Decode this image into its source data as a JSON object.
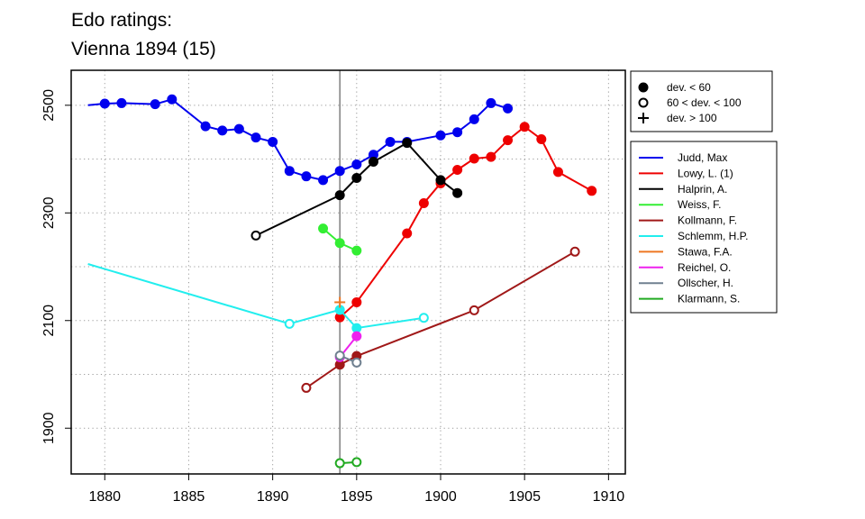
{
  "chart_data": {
    "type": "line",
    "title": "Edo ratings:",
    "subtitle": "Vienna 1894 (15)",
    "xlabel": "",
    "ylabel": "",
    "xlim": [
      1878,
      1911
    ],
    "ylim": [
      1815,
      2565
    ],
    "x_ticks": [
      1880,
      1885,
      1890,
      1895,
      1900,
      1905,
      1910
    ],
    "y_ticks": [
      1900,
      2100,
      2300,
      2500
    ],
    "grid": "dotted",
    "reference_x": 1894,
    "marker_legend": [
      {
        "marker": "filled",
        "label": "dev. < 60"
      },
      {
        "marker": "open",
        "label": "60 < dev. < 100"
      },
      {
        "marker": "plus",
        "label": "dev. > 100"
      }
    ],
    "series": [
      {
        "name": "Judd, Max",
        "color": "#0000ee",
        "points": [
          {
            "x": 1879,
            "y": 2500,
            "m": "none"
          },
          {
            "x": 1880,
            "y": 2503,
            "m": "filled"
          },
          {
            "x": 1881,
            "y": 2504,
            "m": "filled"
          },
          {
            "x": 1883,
            "y": 2502,
            "m": "filled"
          },
          {
            "x": 1884,
            "y": 2511,
            "m": "filled"
          },
          {
            "x": 1886,
            "y": 2461,
            "m": "filled"
          },
          {
            "x": 1887,
            "y": 2453,
            "m": "filled"
          },
          {
            "x": 1888,
            "y": 2456,
            "m": "filled"
          },
          {
            "x": 1889,
            "y": 2440,
            "m": "filled"
          },
          {
            "x": 1890,
            "y": 2432,
            "m": "filled"
          },
          {
            "x": 1891,
            "y": 2378,
            "m": "filled"
          },
          {
            "x": 1892,
            "y": 2368,
            "m": "filled"
          },
          {
            "x": 1893,
            "y": 2361,
            "m": "filled"
          },
          {
            "x": 1894,
            "y": 2378,
            "m": "filled"
          },
          {
            "x": 1895,
            "y": 2390,
            "m": "filled"
          },
          {
            "x": 1896,
            "y": 2408,
            "m": "filled"
          },
          {
            "x": 1897,
            "y": 2432,
            "m": "filled"
          },
          {
            "x": 1898,
            "y": 2432,
            "m": "filled"
          },
          {
            "x": 1900,
            "y": 2444,
            "m": "filled"
          },
          {
            "x": 1901,
            "y": 2450,
            "m": "filled"
          },
          {
            "x": 1902,
            "y": 2474,
            "m": "filled"
          },
          {
            "x": 1903,
            "y": 2504,
            "m": "filled"
          },
          {
            "x": 1904,
            "y": 2494,
            "m": "filled"
          }
        ]
      },
      {
        "name": "Lowy, L. (1)",
        "color": "#ee0000",
        "points": [
          {
            "x": 1894,
            "y": 2106,
            "m": "filled"
          },
          {
            "x": 1895,
            "y": 2134,
            "m": "filled"
          },
          {
            "x": 1898,
            "y": 2262,
            "m": "filled"
          },
          {
            "x": 1899,
            "y": 2318,
            "m": "filled"
          },
          {
            "x": 1900,
            "y": 2355,
            "m": "filled"
          },
          {
            "x": 1901,
            "y": 2380,
            "m": "filled"
          },
          {
            "x": 1902,
            "y": 2401,
            "m": "filled"
          },
          {
            "x": 1903,
            "y": 2404,
            "m": "filled"
          },
          {
            "x": 1904,
            "y": 2435,
            "m": "filled"
          },
          {
            "x": 1905,
            "y": 2460,
            "m": "filled"
          },
          {
            "x": 1906,
            "y": 2437,
            "m": "filled"
          },
          {
            "x": 1907,
            "y": 2376,
            "m": "filled"
          },
          {
            "x": 1909,
            "y": 2341,
            "m": "filled"
          }
        ]
      },
      {
        "name": "Halprin, A.",
        "color": "#000000",
        "points": [
          {
            "x": 1889,
            "y": 2258,
            "m": "open"
          },
          {
            "x": 1894,
            "y": 2333,
            "m": "filled"
          },
          {
            "x": 1895,
            "y": 2365,
            "m": "filled"
          },
          {
            "x": 1896,
            "y": 2395,
            "m": "filled"
          },
          {
            "x": 1898,
            "y": 2430,
            "m": "filled"
          },
          {
            "x": 1900,
            "y": 2361,
            "m": "filled"
          },
          {
            "x": 1901,
            "y": 2337,
            "m": "filled"
          }
        ]
      },
      {
        "name": "Weiss, F.",
        "color": "#33ee33",
        "points": [
          {
            "x": 1893,
            "y": 2271,
            "m": "filled"
          },
          {
            "x": 1894,
            "y": 2244,
            "m": "filled"
          },
          {
            "x": 1895,
            "y": 2230,
            "m": "filled"
          }
        ]
      },
      {
        "name": "Kollmann, F.",
        "color": "#a01818",
        "points": [
          {
            "x": 1892,
            "y": 1975,
            "m": "open"
          },
          {
            "x": 1894,
            "y": 2018,
            "m": "filled"
          },
          {
            "x": 1895,
            "y": 2034,
            "m": "filled"
          },
          {
            "x": 1902,
            "y": 2119,
            "m": "open"
          },
          {
            "x": 1908,
            "y": 2228,
            "m": "open"
          }
        ]
      },
      {
        "name": "Schlemm, H.P.",
        "color": "#22eeee",
        "points": [
          {
            "x": 1879,
            "y": 2205,
            "m": "none"
          },
          {
            "x": 1891,
            "y": 2094,
            "m": "open"
          },
          {
            "x": 1894,
            "y": 2120,
            "m": "filled"
          },
          {
            "x": 1895,
            "y": 2086,
            "m": "filled"
          },
          {
            "x": 1899,
            "y": 2105,
            "m": "open"
          }
        ]
      },
      {
        "name": "Stawa, F.A.",
        "color": "#ee7722",
        "points": [
          {
            "x": 1894,
            "y": 2134,
            "m": "plus"
          }
        ]
      },
      {
        "name": "Reichel, O.",
        "color": "#ee22ee",
        "points": [
          {
            "x": 1894,
            "y": 2032,
            "m": "filled"
          },
          {
            "x": 1895,
            "y": 2071,
            "m": "filled"
          }
        ]
      },
      {
        "name": "Ollscher, H.",
        "color": "#708090",
        "points": [
          {
            "x": 1894,
            "y": 2035,
            "m": "open"
          },
          {
            "x": 1895,
            "y": 2022,
            "m": "open"
          }
        ]
      },
      {
        "name": "Klarmann, S.",
        "color": "#22aa22",
        "points": [
          {
            "x": 1894,
            "y": 1835,
            "m": "open"
          },
          {
            "x": 1895,
            "y": 1837,
            "m": "open"
          }
        ]
      }
    ]
  }
}
